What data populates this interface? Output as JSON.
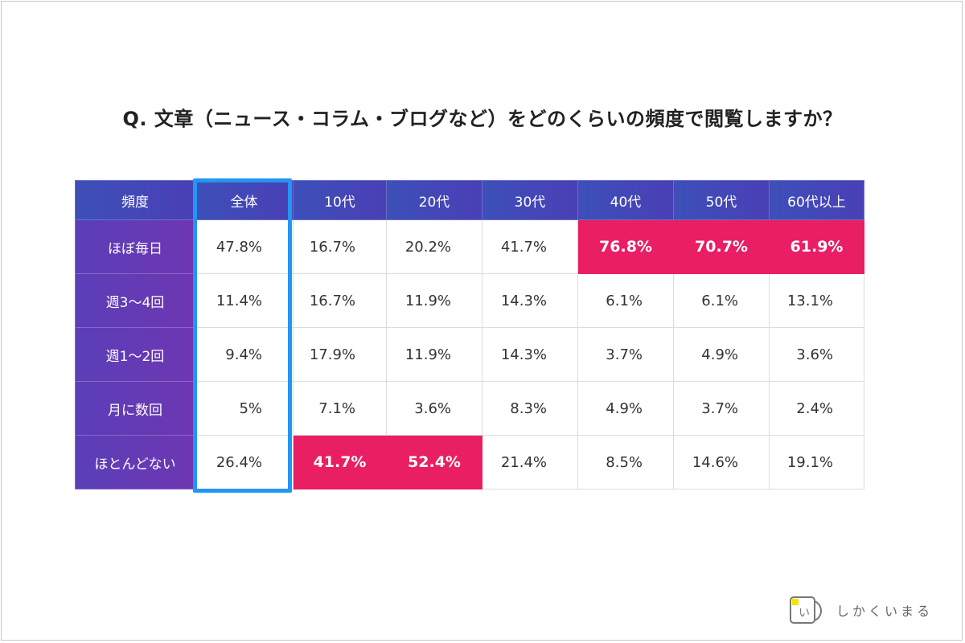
{
  "title": "Q. 文章（ニュース・コラム・ブログなど）をどのくらいの頻度で閲覧しますか？",
  "brand": {
    "name": "しかくいまる",
    "logo_glyph": "い"
  },
  "colors": {
    "header": "#3d50b8",
    "row_header": "#6f36b2",
    "highlight": "#e91e63",
    "focus_border": "#2196f3"
  },
  "chart_data": {
    "type": "table",
    "title": "Q. 文章（ニュース・コラム・ブログなど）をどのくらいの頻度で閲覧しますか？",
    "corner_label": "頻度",
    "columns": [
      "全体",
      "10代",
      "20代",
      "30代",
      "40代",
      "50代",
      "60代以上"
    ],
    "rows": [
      {
        "label": "ほぼ毎日",
        "values": [
          "47.8%",
          "16.7%",
          "20.2%",
          "41.7%",
          "76.8%",
          "70.7%",
          "61.9%"
        ],
        "highlight": [
          false,
          false,
          false,
          false,
          true,
          true,
          true
        ]
      },
      {
        "label": "週3〜4回",
        "values": [
          "11.4%",
          "16.7%",
          "11.9%",
          "14.3%",
          "6.1%",
          "6.1%",
          "13.1%"
        ],
        "highlight": [
          false,
          false,
          false,
          false,
          false,
          false,
          false
        ]
      },
      {
        "label": "週1〜2回",
        "values": [
          "9.4%",
          "17.9%",
          "11.9%",
          "14.3%",
          "3.7%",
          "4.9%",
          "3.6%"
        ],
        "highlight": [
          false,
          false,
          false,
          false,
          false,
          false,
          false
        ]
      },
      {
        "label": "月に数回",
        "values": [
          "5%",
          "7.1%",
          "3.6%",
          "8.3%",
          "4.9%",
          "3.7%",
          "2.4%"
        ],
        "highlight": [
          false,
          false,
          false,
          false,
          false,
          false,
          false
        ]
      },
      {
        "label": "ほとんどない",
        "values": [
          "26.4%",
          "41.7%",
          "52.4%",
          "21.4%",
          "8.5%",
          "14.6%",
          "19.1%"
        ],
        "highlight": [
          false,
          true,
          true,
          false,
          false,
          false,
          false
        ]
      }
    ],
    "emphasized_column": "全体"
  }
}
